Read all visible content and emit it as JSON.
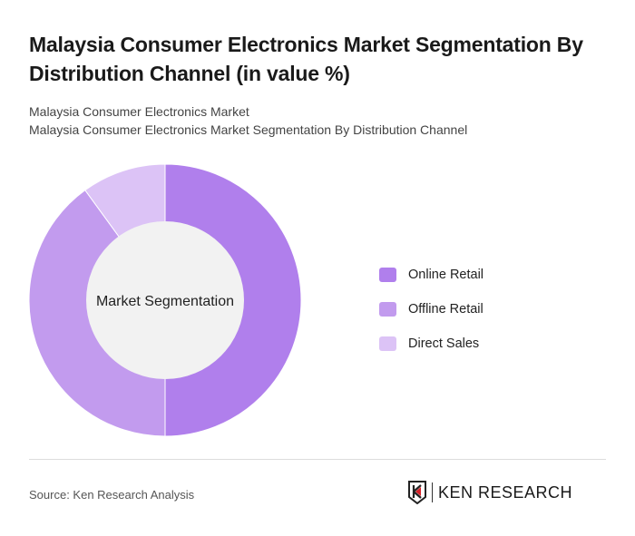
{
  "title": "Malaysia Consumer Electronics Market Segmentation By Distribution Channel (in value %)",
  "subtitle_1": "Malaysia Consumer Electronics Market",
  "subtitle_2": "Malaysia Consumer Electronics Market Segmentation By Distribution Channel",
  "source": "Source: Ken Research Analysis",
  "logo_text": "KEN RESEARCH",
  "chart_data": {
    "type": "pie",
    "donut": true,
    "center_label": "Market Segmentation",
    "categories": [
      "Online Retail",
      "Offline Retail",
      "Direct Sales"
    ],
    "values": [
      50,
      40,
      10
    ],
    "colors": [
      "#b07fec",
      "#c29bee",
      "#dcc3f6"
    ],
    "legend_position": "right"
  }
}
